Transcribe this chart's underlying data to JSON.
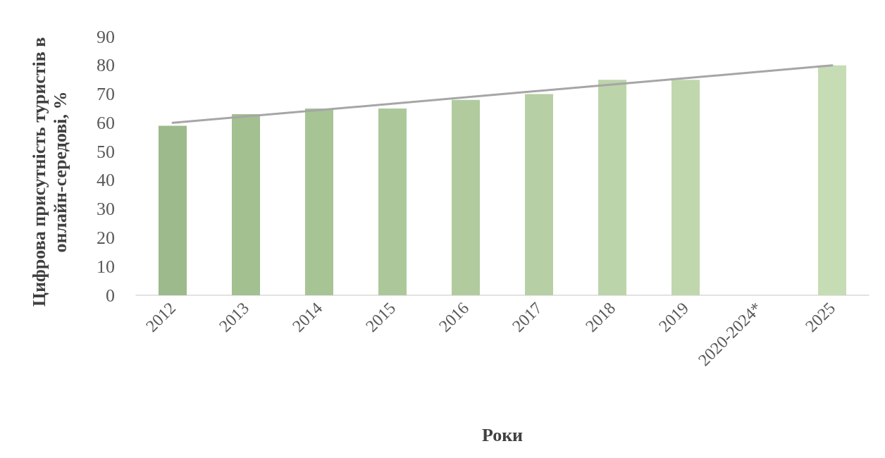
{
  "chart_data": {
    "type": "bar",
    "xlabel": "Роки",
    "ylabel": "Цифрова присутність туристів в онлайн-середові, %",
    "categories": [
      "2012",
      "2013",
      "2014",
      "2015",
      "2016",
      "2017",
      "2018",
      "2019",
      "2020-2024*",
      "2025"
    ],
    "series": [
      {
        "values": [
          59,
          63,
          65,
          65,
          68,
          70,
          75,
          75,
          null,
          80
        ],
        "colors": [
          "#9cba8b",
          "#a2c090",
          "#a7c495",
          "#acc89a",
          "#b1cb9f",
          "#b6cfa4",
          "#bcd4aa",
          "#c0d7ae",
          "#c4dab1",
          "#c6dcb4"
        ]
      },
      {
        "type": "line",
        "values": [
          60,
          null,
          null,
          null,
          null,
          null,
          null,
          null,
          null,
          80
        ],
        "color": "#a6a6a6"
      }
    ],
    "ylim": [
      0,
      90
    ],
    "yticks": [
      0,
      10,
      20,
      30,
      40,
      50,
      60,
      70,
      80,
      90
    ],
    "grid": false,
    "marker": "none"
  }
}
